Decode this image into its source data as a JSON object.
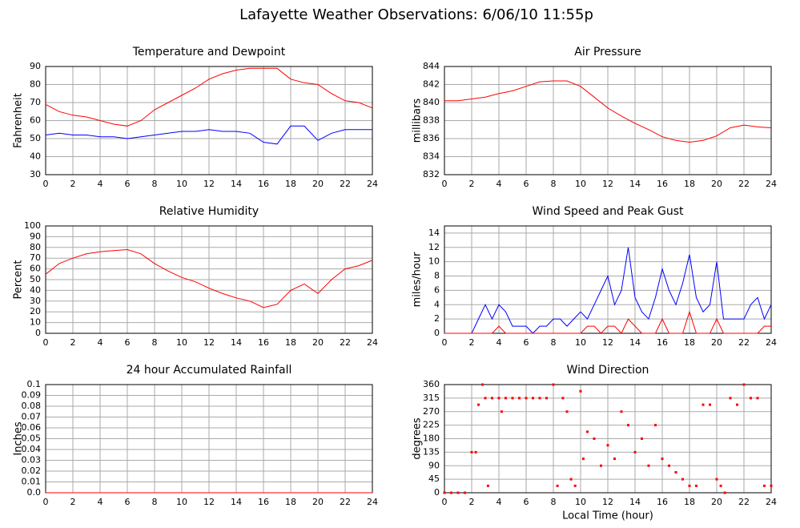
{
  "title": "Lafayette Weather Observations: 6/06/10 11:55p",
  "chart_data": [
    {
      "type": "line",
      "title": "Temperature and Dewpoint",
      "y_label": "Fahrenheit",
      "x": [
        0,
        1,
        2,
        3,
        4,
        5,
        6,
        7,
        8,
        9,
        10,
        11,
        12,
        13,
        14,
        15,
        16,
        17,
        18,
        19,
        20,
        21,
        22,
        23,
        24
      ],
      "series": [
        {
          "color": "#ff0000",
          "values": [
            69,
            65,
            63,
            62,
            60,
            58,
            57,
            60,
            66,
            70,
            74,
            78,
            83,
            86,
            88,
            89,
            89,
            89,
            83,
            81,
            80,
            75,
            71,
            70,
            67
          ]
        },
        {
          "color": "#0000ff",
          "values": [
            52,
            53,
            52,
            52,
            51,
            51,
            50,
            51,
            52,
            53,
            54,
            54,
            55,
            54,
            54,
            53,
            48,
            47,
            57,
            57,
            49,
            53,
            55,
            55,
            55
          ]
        }
      ],
      "xlim": [
        0,
        24
      ],
      "ylim": [
        30,
        90
      ],
      "xticks": [
        0,
        2,
        4,
        6,
        8,
        10,
        12,
        14,
        16,
        18,
        20,
        22,
        24
      ],
      "yticks": [
        30,
        40,
        50,
        60,
        70,
        80,
        90
      ],
      "grid": true
    },
    {
      "type": "line",
      "title": "Air Pressure",
      "y_label": "millibars",
      "x": [
        0,
        1,
        2,
        3,
        4,
        5,
        6,
        7,
        8,
        9,
        10,
        11,
        12,
        13,
        14,
        15,
        16,
        17,
        18,
        19,
        20,
        21,
        22,
        23,
        24
      ],
      "series": [
        {
          "color": "#ff0000",
          "values": [
            840.2,
            840.2,
            840.4,
            840.6,
            841,
            841.3,
            841.8,
            842.3,
            842.4,
            842.4,
            841.8,
            840.6,
            839.4,
            838.5,
            837.7,
            837,
            836.2,
            835.8,
            835.6,
            835.8,
            836.3,
            837.2,
            837.5,
            837.3,
            837.2
          ]
        }
      ],
      "xlim": [
        0,
        24
      ],
      "ylim": [
        832,
        844
      ],
      "xticks": [
        0,
        2,
        4,
        6,
        8,
        10,
        12,
        14,
        16,
        18,
        20,
        22,
        24
      ],
      "yticks": [
        832,
        834,
        836,
        838,
        840,
        842,
        844
      ],
      "grid": true
    },
    {
      "type": "line",
      "title": "Relative Humidity",
      "y_label": "Percent",
      "x": [
        0,
        1,
        2,
        3,
        4,
        5,
        6,
        7,
        8,
        9,
        10,
        11,
        12,
        13,
        14,
        15,
        16,
        17,
        18,
        19,
        20,
        21,
        22,
        23,
        24
      ],
      "series": [
        {
          "color": "#ff0000",
          "values": [
            55,
            65,
            70,
            74,
            76,
            77,
            78,
            74,
            65,
            58,
            52,
            48,
            42,
            37,
            33,
            30,
            24,
            27,
            40,
            46,
            37,
            50,
            60,
            63,
            68
          ]
        }
      ],
      "xlim": [
        0,
        24
      ],
      "ylim": [
        0,
        100
      ],
      "xticks": [
        0,
        2,
        4,
        6,
        8,
        10,
        12,
        14,
        16,
        18,
        20,
        22,
        24
      ],
      "yticks": [
        0,
        10,
        20,
        30,
        40,
        50,
        60,
        70,
        80,
        90,
        100
      ],
      "grid": true
    },
    {
      "type": "line",
      "title": "Wind Speed and Peak Gust",
      "y_label": "miles/hour",
      "x": [
        0,
        0.5,
        1,
        1.5,
        2,
        2.5,
        3,
        3.5,
        4,
        4.5,
        5,
        5.5,
        6,
        6.5,
        7,
        7.5,
        8,
        8.5,
        9,
        9.5,
        10,
        10.5,
        11,
        11.5,
        12,
        12.5,
        13,
        13.5,
        14,
        14.5,
        15,
        15.5,
        16,
        16.5,
        17,
        17.5,
        18,
        18.5,
        19,
        19.5,
        20,
        20.5,
        21,
        21.5,
        22,
        22.5,
        23,
        23.5,
        24
      ],
      "series": [
        {
          "color": "#0000ff",
          "values": [
            0,
            0,
            0,
            0,
            0,
            2,
            4,
            2,
            4,
            3,
            1,
            1,
            1,
            0,
            1,
            1,
            2,
            2,
            1,
            2,
            3,
            2,
            4,
            6,
            8,
            4,
            6,
            12,
            5,
            3,
            2,
            5,
            9,
            6,
            4,
            7,
            11,
            5,
            3,
            4,
            10,
            2,
            2,
            2,
            2,
            4,
            5,
            2,
            4
          ]
        },
        {
          "color": "#ff0000",
          "values": [
            0,
            0,
            0,
            0,
            0,
            0,
            0,
            0,
            1,
            0,
            0,
            0,
            0,
            0,
            0,
            0,
            0,
            0,
            0,
            0,
            0,
            1,
            1,
            0,
            1,
            1,
            0,
            2,
            1,
            0,
            0,
            0,
            2,
            0,
            0,
            0,
            3,
            0,
            0,
            0,
            2,
            0,
            0,
            0,
            0,
            0,
            0,
            1,
            1
          ]
        }
      ],
      "xlim": [
        0,
        24
      ],
      "ylim": [
        0,
        15
      ],
      "xticks": [
        0,
        2,
        4,
        6,
        8,
        10,
        12,
        14,
        16,
        18,
        20,
        22,
        24
      ],
      "yticks": [
        0,
        2,
        4,
        6,
        8,
        10,
        12,
        14
      ],
      "grid": true
    },
    {
      "type": "line",
      "title": "24 hour Accumulated Rainfall",
      "y_label": "Inches",
      "x": [
        0,
        24
      ],
      "series": [
        {
          "color": "#ff0000",
          "values": [
            0,
            0
          ]
        }
      ],
      "xlim": [
        0,
        24
      ],
      "ylim": [
        0,
        0.1
      ],
      "xticks": [
        0,
        2,
        4,
        6,
        8,
        10,
        12,
        14,
        16,
        18,
        20,
        22,
        24
      ],
      "yticks": [
        {
          "value": 0,
          "label": "0.0"
        },
        0.01,
        0.02,
        0.03,
        0.04,
        0.05,
        0.06,
        0.07,
        0.08,
        0.09,
        {
          "value": 0.1,
          "label": "0.1"
        }
      ],
      "grid": true
    },
    {
      "type": "scatter",
      "title": "Wind Direction",
      "y_label": "degrees",
      "x_label": "Local Time (hour)",
      "x": [
        0,
        0.5,
        1,
        1.5,
        2,
        2.3,
        2.5,
        2.8,
        3,
        3.2,
        3.5,
        4,
        4.2,
        4.5,
        5,
        5.5,
        6,
        6.5,
        7,
        7.5,
        8,
        8.3,
        8.7,
        9,
        9.3,
        9.6,
        10,
        10.2,
        10.5,
        11,
        11.5,
        12,
        12.5,
        13,
        13.5,
        14,
        14.5,
        15,
        15.5,
        16,
        16.5,
        17,
        17.5,
        18,
        18.5,
        19,
        19.5,
        20,
        20.3,
        20.6,
        21,
        21.5,
        22,
        22.5,
        23,
        23.5,
        24
      ],
      "series": [
        {
          "color": "#ff0000",
          "values": [
            0,
            0,
            0,
            0,
            135,
            135,
            293,
            360,
            315,
            23,
            315,
            315,
            270,
            315,
            315,
            315,
            315,
            315,
            315,
            315,
            360,
            23,
            315,
            270,
            45,
            23,
            338,
            113,
            203,
            180,
            90,
            158,
            113,
            270,
            225,
            135,
            180,
            90,
            225,
            113,
            90,
            68,
            45,
            23,
            23,
            293,
            293,
            45,
            23,
            0,
            315,
            293,
            360,
            315,
            315,
            23,
            23
          ]
        }
      ],
      "xlim": [
        0,
        24
      ],
      "ylim": [
        0,
        360
      ],
      "xticks": [
        0,
        2,
        4,
        6,
        8,
        10,
        12,
        14,
        16,
        18,
        20,
        22,
        24
      ],
      "yticks": [
        0,
        45,
        90,
        135,
        180,
        225,
        270,
        315,
        360
      ],
      "grid": true
    }
  ]
}
